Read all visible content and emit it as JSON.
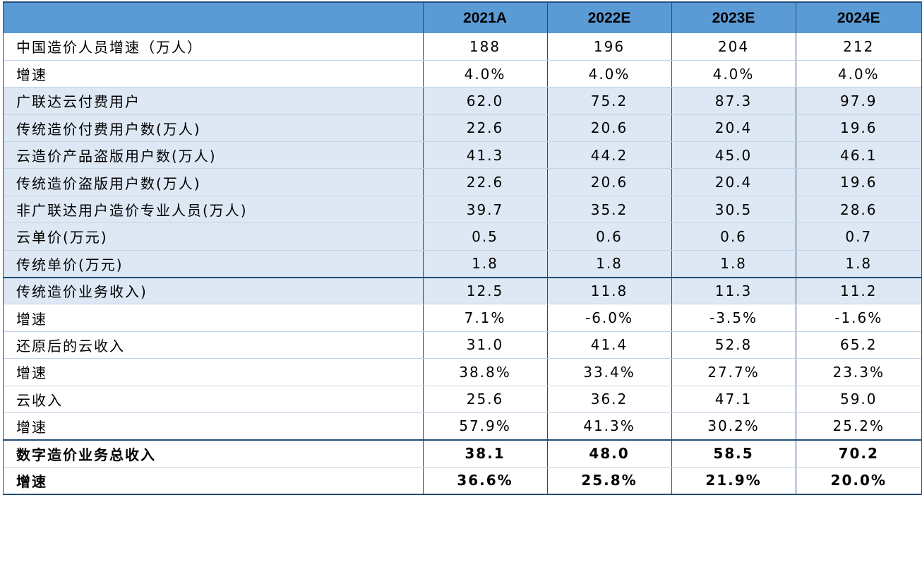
{
  "header": {
    "label": "",
    "years": [
      "2021A",
      "2022E",
      "2023E",
      "2024E"
    ]
  },
  "rows": [
    {
      "label": "中国造价人员增速（万人）",
      "values": [
        "188",
        "196",
        "204",
        "212"
      ]
    },
    {
      "label": "增速",
      "values": [
        "4.0%",
        "4.0%",
        "4.0%",
        "4.0%"
      ]
    },
    {
      "label": "广联达云付费用户",
      "values": [
        "62.0",
        "75.2",
        "87.3",
        "97.9"
      ]
    },
    {
      "label": "传统造价付费用户数(万人)",
      "values": [
        "22.6",
        "20.6",
        "20.4",
        "19.6"
      ]
    },
    {
      "label": "云造价产品盗版用户数(万人)",
      "values": [
        "41.3",
        "44.2",
        "45.0",
        "46.1"
      ]
    },
    {
      "label": "传统造价盗版用户数(万人)",
      "values": [
        "22.6",
        "20.6",
        "20.4",
        "19.6"
      ]
    },
    {
      "label": "非广联达用户造价专业人员(万人)",
      "values": [
        "39.7",
        "35.2",
        "30.5",
        "28.6"
      ]
    },
    {
      "label": "云单价(万元)",
      "values": [
        "0.5",
        "0.6",
        "0.6",
        "0.7"
      ]
    },
    {
      "label": "传统单价(万元)",
      "values": [
        "1.8",
        "1.8",
        "1.8",
        "1.8"
      ]
    },
    {
      "label": "传统造价业务收入)",
      "values": [
        "12.5",
        "11.8",
        "11.3",
        "11.2"
      ]
    },
    {
      "label": "增速",
      "values": [
        "7.1%",
        "-6.0%",
        "-3.5%",
        "-1.6%"
      ]
    },
    {
      "label": "还原后的云收入",
      "values": [
        "31.0",
        "41.4",
        "52.8",
        "65.2"
      ]
    },
    {
      "label": "增速",
      "values": [
        "38.8%",
        "33.4%",
        "27.7%",
        "23.3%"
      ]
    },
    {
      "label": "云收入",
      "values": [
        "25.6",
        "36.2",
        "47.1",
        "59.0"
      ]
    },
    {
      "label": "增速",
      "values": [
        "57.9%",
        "41.3%",
        "30.2%",
        "25.2%"
      ]
    },
    {
      "label": "数字造价业务总收入",
      "values": [
        "38.1",
        "48.0",
        "58.5",
        "70.2"
      ]
    },
    {
      "label": "增速",
      "values": [
        "36.6%",
        "25.8%",
        "21.9%",
        "20.0%"
      ]
    }
  ],
  "colors": {
    "header_bg": "#5b9bd5",
    "shade_bg": "#dde8f4",
    "rule": "#1f4e79"
  }
}
